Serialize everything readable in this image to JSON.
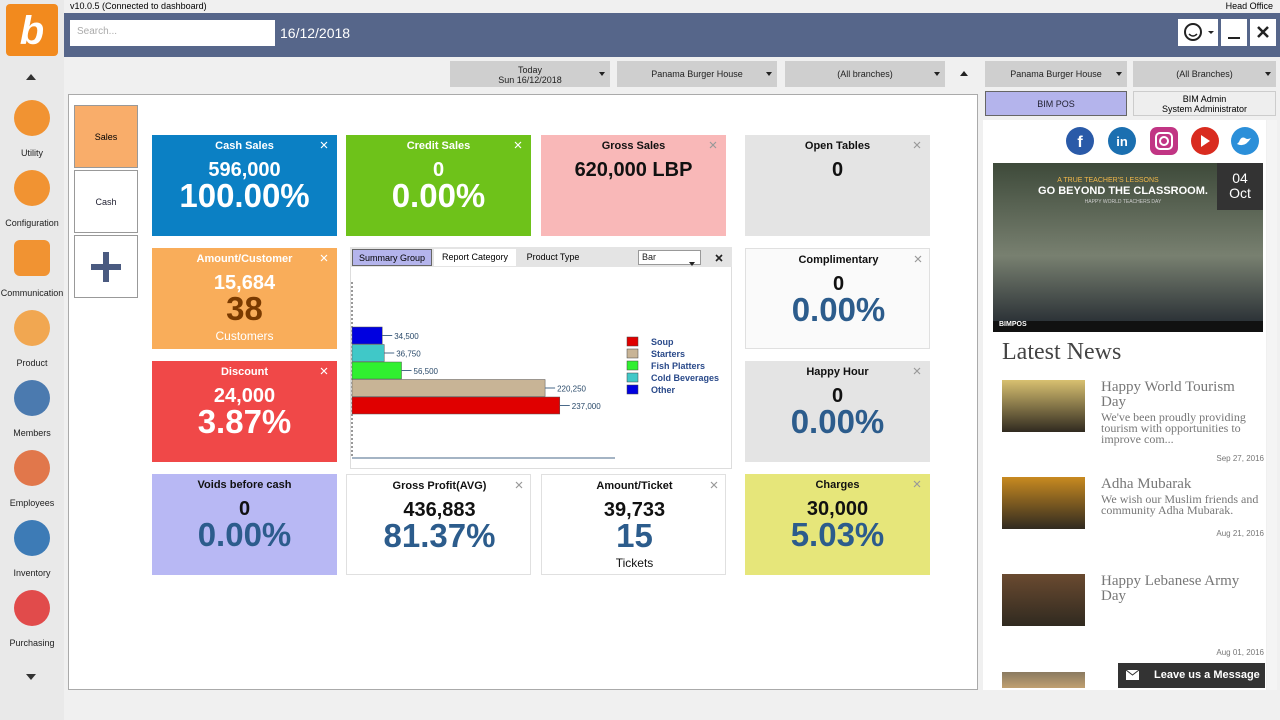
{
  "app": {
    "version": "v10.0.5 (Connected to dashboard)",
    "office": "Head Office",
    "search_placeholder": "Search...",
    "date": "16/12/2018"
  },
  "sidebar": [
    "Utility",
    "Configuration",
    "Communication",
    "Product",
    "Members",
    "Employees",
    "Inventory",
    "Purchasing"
  ],
  "toolbar": {
    "period": "Today",
    "period_date": "Sun 16/12/2018",
    "company": "Panama Burger House",
    "branches": "(All branches)",
    "right_company": "Panama Burger House",
    "right_branches": "(All Branches)",
    "user_button": "BIM POS",
    "user_name": "BIM Admin",
    "user_role": "System Administrator"
  },
  "tabs": [
    "Sales",
    "Cash"
  ],
  "tiles": [
    {
      "title": "Cash Sales",
      "lines": [
        "596,000",
        "100.00%"
      ]
    },
    {
      "title": "Credit Sales",
      "lines": [
        "0",
        "0.00%"
      ]
    },
    {
      "title": "Gross Sales",
      "lines": [
        "620,000 LBP"
      ]
    },
    {
      "title": "Open Tables",
      "lines": [
        "0"
      ]
    },
    {
      "title": "Amount/Customer",
      "lines": [
        "15,684",
        "38",
        "Customers"
      ]
    },
    {
      "title": "Complimentary",
      "lines": [
        "0",
        "0.00%"
      ]
    },
    {
      "title": "Discount",
      "lines": [
        "24,000",
        "3.87%"
      ]
    },
    {
      "title": "Happy Hour",
      "lines": [
        "0",
        "0.00%"
      ]
    },
    {
      "title": "Voids before cash",
      "lines": [
        "0",
        "0.00%"
      ]
    },
    {
      "title": "Gross Profit(AVG)",
      "lines": [
        "436,883",
        "81.37%"
      ]
    },
    {
      "title": "Amount/Ticket",
      "lines": [
        "39,733",
        "15",
        "Tickets"
      ]
    },
    {
      "title": "Charges",
      "lines": [
        "30,000",
        "5.03%"
      ]
    }
  ],
  "chart_tabs": [
    "Summary Group",
    "Report Category",
    "Product Type"
  ],
  "chart_select": "Bar",
  "chart_data": {
    "type": "hbar",
    "categories": [
      "Other",
      "Cold Beverages",
      "Fish Platters",
      "Starters",
      "Soup"
    ],
    "values": [
      34500,
      36750,
      56500,
      220250,
      237000
    ],
    "value_labels": [
      "34,500",
      "36,750",
      "56,500",
      "220,250",
      "237,000"
    ],
    "colors": [
      "#0000e0",
      "#40c8c8",
      "#30f030",
      "#c8b496",
      "#e00000"
    ],
    "legend_order": [
      4,
      3,
      2,
      1,
      0
    ],
    "xlim": [
      0,
      300000
    ]
  },
  "banner": {
    "kicker": "A TRUE TEACHER'S LESSONS",
    "headline": "GO BEYOND THE CLASSROOM.",
    "sub": "HAPPY WORLD TEACHERS DAY",
    "day": "04",
    "month": "Oct",
    "brand": "BIMPOS"
  },
  "news_title": "Latest News",
  "news": [
    {
      "title": "Happy World Tourism Day",
      "text": "We've been proudly providing tourism with opportunities to improve com...",
      "date": "Sep 27, 2016"
    },
    {
      "title": "Adha Mubarak",
      "text": "We wish our Muslim friends and community Adha Mubarak.",
      "date": "Aug 21, 2016"
    },
    {
      "title": "Happy Lebanese Army Day",
      "date": "Aug 01, 2016"
    }
  ],
  "message_button": "Leave us a Message"
}
